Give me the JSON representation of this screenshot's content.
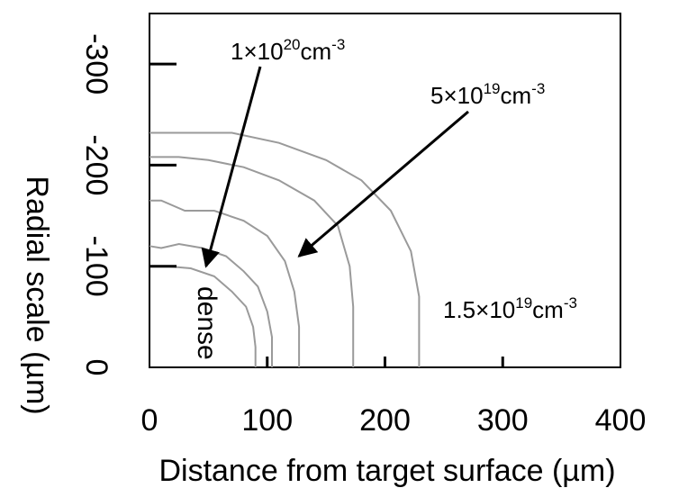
{
  "chart_data": {
    "type": "line",
    "title": "",
    "xlabel": "Distance from target surface (µm)",
    "ylabel": "Radial scale (µm)",
    "xlim": [
      0,
      400
    ],
    "ylim": [
      0,
      -350
    ],
    "x_ticks": [
      "0",
      "100",
      "200",
      "300",
      "400"
    ],
    "y_ticks": [
      "0",
      "-100",
      "-200",
      "-300"
    ],
    "y_tick_orientation": "rotated",
    "grid": false,
    "series": [
      {
        "x": [
          90,
          90,
          88,
          82,
          70,
          55,
          35,
          15,
          0
        ],
        "y": [
          0,
          -20,
          -40,
          -60,
          -75,
          -90,
          -98,
          -100,
          -100
        ]
      },
      {
        "x": [
          104,
          104,
          100,
          92,
          80,
          65,
          45,
          25,
          10,
          0
        ],
        "y": [
          0,
          -30,
          -55,
          -80,
          -95,
          -110,
          -118,
          -122,
          -118,
          -120
        ]
      },
      {
        "x": [
          127,
          127,
          123,
          115,
          100,
          80,
          55,
          30,
          10,
          0
        ],
        "y": [
          0,
          -40,
          -75,
          -105,
          -130,
          -145,
          -155,
          -155,
          -165,
          -165
        ]
      },
      {
        "x": [
          173,
          173,
          170,
          160,
          140,
          110,
          80,
          50,
          25,
          0
        ],
        "y": [
          0,
          -60,
          -100,
          -140,
          -165,
          -185,
          -198,
          -205,
          -208,
          -208
        ]
      },
      {
        "x": [
          229,
          229,
          222,
          205,
          180,
          150,
          110,
          70,
          30,
          0
        ],
        "y": [
          0,
          -70,
          -115,
          -155,
          -185,
          -205,
          -222,
          -232,
          -232,
          -232
        ]
      }
    ],
    "annotations": [
      {
        "base": "1×10",
        "exp": "20",
        "unit": "cm",
        "unit_exp": "-3",
        "arrow_to": [
          48,
          -100
        ]
      },
      {
        "base": "5×10",
        "exp": "19",
        "unit": "cm",
        "unit_exp": "-3",
        "arrow_to": [
          127,
          -110
        ]
      },
      {
        "base": "1.5×10",
        "exp": "19",
        "unit": "cm",
        "unit_exp": "-3"
      },
      {
        "text": "dense"
      }
    ]
  }
}
